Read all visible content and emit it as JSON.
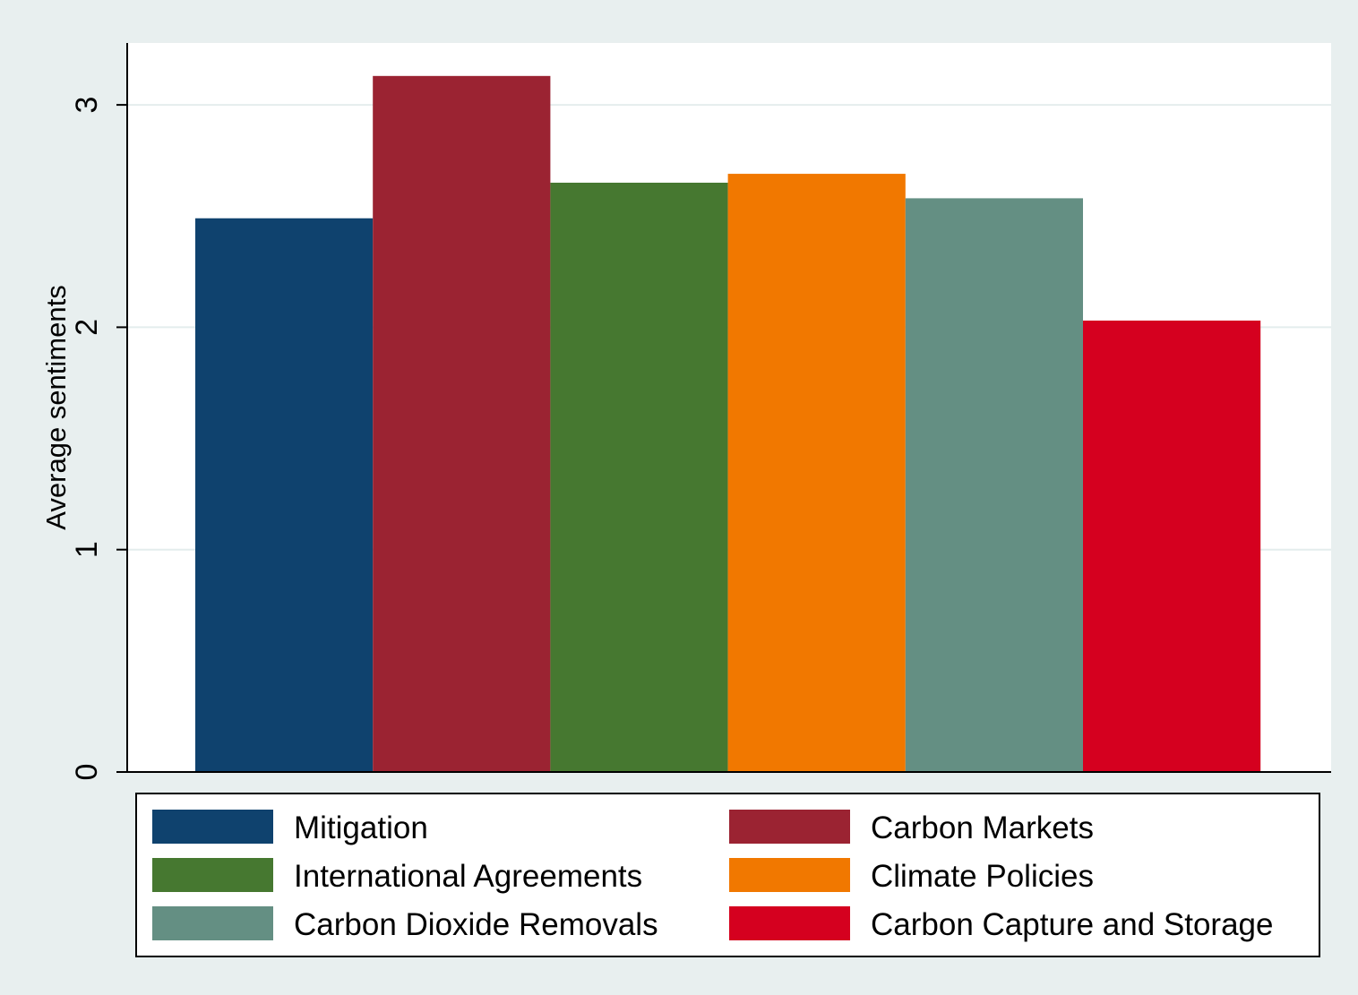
{
  "chart_data": {
    "type": "bar",
    "ylabel": "Average sentiments",
    "xlabel": "",
    "ylim": [
      0,
      3.28
    ],
    "yticks": [
      "0",
      "1",
      "2",
      "3"
    ],
    "grid": true,
    "legend_position": "bottom",
    "series": [
      {
        "name": "Mitigation",
        "value": 2.49,
        "color": "#0f426e"
      },
      {
        "name": "Carbon Markets",
        "value": 3.13,
        "color": "#9b2332"
      },
      {
        "name": "International Agreements",
        "value": 2.65,
        "color": "#467830"
      },
      {
        "name": "Climate Policies",
        "value": 2.69,
        "color": "#f17800"
      },
      {
        "name": "Carbon Dioxide Removals",
        "value": 2.58,
        "color": "#648f83"
      },
      {
        "name": "Carbon Capture and Storage",
        "value": 2.03,
        "color": "#d5001f"
      }
    ]
  }
}
